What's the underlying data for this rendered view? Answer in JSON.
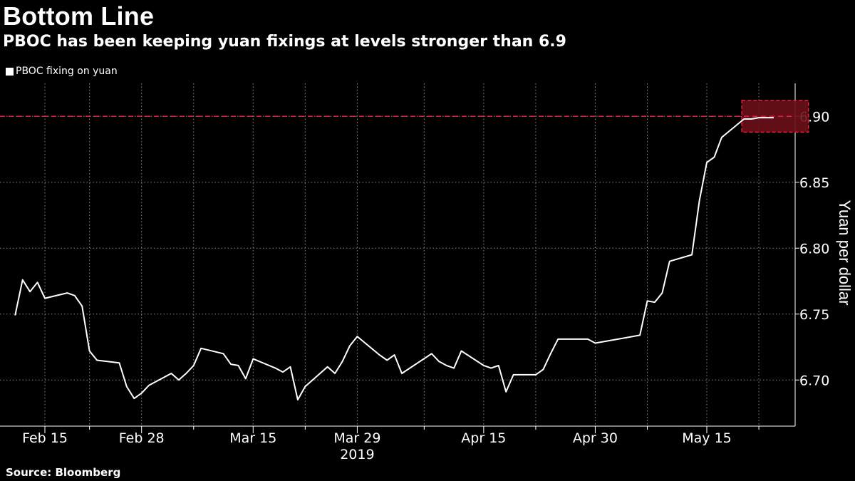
{
  "title": "Bottom Line",
  "subtitle": "PBOC has been keeping yuan fixings at levels stronger than 6.9",
  "legend_label": "PBOC fixing on yuan",
  "source": "Source: Bloomberg",
  "colors": {
    "line": "#ffffff",
    "reference": "#e8213a",
    "highlight_fill": "#6b0f1a",
    "grid": "#8a8a8a",
    "background": "#000000"
  },
  "chart_data": {
    "type": "line",
    "title": "Bottom Line",
    "subtitle": "PBOC has been keeping yuan fixings at levels stronger than 6.9",
    "ylabel": "Yuan per dollar",
    "year_label": "2019",
    "y_axis_position": "right",
    "ylim": [
      6.665,
      6.925
    ],
    "yticks": [
      6.7,
      6.75,
      6.8,
      6.85,
      6.9
    ],
    "ytick_labels": [
      "6.70",
      "6.75",
      "6.80",
      "6.85",
      "6.90"
    ],
    "xticks": [
      {
        "date": "2019-02-15",
        "label": "Feb 15"
      },
      {
        "date": "2019-02-28",
        "label": "Feb 28"
      },
      {
        "date": "2019-03-15",
        "label": "Mar 15"
      },
      {
        "date": "2019-03-29",
        "label": "Mar 29"
      },
      {
        "date": "2019-04-15",
        "label": "Apr 15"
      },
      {
        "date": "2019-04-30",
        "label": "Apr 30"
      },
      {
        "date": "2019-05-15",
        "label": "May 15"
      }
    ],
    "grid": true,
    "reference_line": 6.9,
    "highlight_range": [
      "2019-05-20",
      "2019-05-28"
    ],
    "highlight_ylim": [
      6.888,
      6.912
    ],
    "series": [
      {
        "name": "PBOC fixing on yuan",
        "points": [
          {
            "x": "2019-02-11",
            "y": 6.749
          },
          {
            "x": "2019-02-12",
            "y": 6.776
          },
          {
            "x": "2019-02-13",
            "y": 6.767
          },
          {
            "x": "2019-02-14",
            "y": 6.774
          },
          {
            "x": "2019-02-15",
            "y": 6.762
          },
          {
            "x": "2019-02-18",
            "y": 6.766
          },
          {
            "x": "2019-02-19",
            "y": 6.764
          },
          {
            "x": "2019-02-20",
            "y": 6.756
          },
          {
            "x": "2019-02-21",
            "y": 6.722
          },
          {
            "x": "2019-02-22",
            "y": 6.715
          },
          {
            "x": "2019-02-25",
            "y": 6.713
          },
          {
            "x": "2019-02-26",
            "y": 6.695
          },
          {
            "x": "2019-02-27",
            "y": 6.686
          },
          {
            "x": "2019-02-28",
            "y": 6.69
          },
          {
            "x": "2019-03-01",
            "y": 6.696
          },
          {
            "x": "2019-03-04",
            "y": 6.705
          },
          {
            "x": "2019-03-05",
            "y": 6.7
          },
          {
            "x": "2019-03-06",
            "y": 6.705
          },
          {
            "x": "2019-03-07",
            "y": 6.711
          },
          {
            "x": "2019-03-08",
            "y": 6.724
          },
          {
            "x": "2019-03-11",
            "y": 6.72
          },
          {
            "x": "2019-03-12",
            "y": 6.712
          },
          {
            "x": "2019-03-13",
            "y": 6.711
          },
          {
            "x": "2019-03-14",
            "y": 6.701
          },
          {
            "x": "2019-03-15",
            "y": 6.716
          },
          {
            "x": "2019-03-18",
            "y": 6.709
          },
          {
            "x": "2019-03-19",
            "y": 6.706
          },
          {
            "x": "2019-03-20",
            "y": 6.71
          },
          {
            "x": "2019-03-21",
            "y": 6.685
          },
          {
            "x": "2019-03-22",
            "y": 6.695
          },
          {
            "x": "2019-03-25",
            "y": 6.71
          },
          {
            "x": "2019-03-26",
            "y": 6.705
          },
          {
            "x": "2019-03-27",
            "y": 6.714
          },
          {
            "x": "2019-03-28",
            "y": 6.726
          },
          {
            "x": "2019-03-29",
            "y": 6.733
          },
          {
            "x": "2019-04-01",
            "y": 6.719
          },
          {
            "x": "2019-04-02",
            "y": 6.715
          },
          {
            "x": "2019-04-03",
            "y": 6.719
          },
          {
            "x": "2019-04-04",
            "y": 6.705
          },
          {
            "x": "2019-04-08",
            "y": 6.72
          },
          {
            "x": "2019-04-09",
            "y": 6.714
          },
          {
            "x": "2019-04-10",
            "y": 6.711
          },
          {
            "x": "2019-04-11",
            "y": 6.709
          },
          {
            "x": "2019-04-12",
            "y": 6.722
          },
          {
            "x": "2019-04-15",
            "y": 6.711
          },
          {
            "x": "2019-04-16",
            "y": 6.709
          },
          {
            "x": "2019-04-17",
            "y": 6.711
          },
          {
            "x": "2019-04-18",
            "y": 6.691
          },
          {
            "x": "2019-04-19",
            "y": 6.704
          },
          {
            "x": "2019-04-22",
            "y": 6.704
          },
          {
            "x": "2019-04-23",
            "y": 6.708
          },
          {
            "x": "2019-04-24",
            "y": 6.72
          },
          {
            "x": "2019-04-25",
            "y": 6.731
          },
          {
            "x": "2019-04-26",
            "y": 6.731
          },
          {
            "x": "2019-04-29",
            "y": 6.731
          },
          {
            "x": "2019-04-30",
            "y": 6.728
          },
          {
            "x": "2019-05-06",
            "y": 6.734
          },
          {
            "x": "2019-05-07",
            "y": 6.76
          },
          {
            "x": "2019-05-08",
            "y": 6.759
          },
          {
            "x": "2019-05-09",
            "y": 6.766
          },
          {
            "x": "2019-05-10",
            "y": 6.79
          },
          {
            "x": "2019-05-13",
            "y": 6.795
          },
          {
            "x": "2019-05-14",
            "y": 6.836
          },
          {
            "x": "2019-05-15",
            "y": 6.865
          },
          {
            "x": "2019-05-16",
            "y": 6.869
          },
          {
            "x": "2019-05-17",
            "y": 6.884
          },
          {
            "x": "2019-05-20",
            "y": 6.898
          },
          {
            "x": "2019-05-21",
            "y": 6.898
          },
          {
            "x": "2019-05-22",
            "y": 6.899
          },
          {
            "x": "2019-05-23",
            "y": 6.899
          },
          {
            "x": "2019-05-24",
            "y": 6.899
          }
        ]
      }
    ]
  }
}
